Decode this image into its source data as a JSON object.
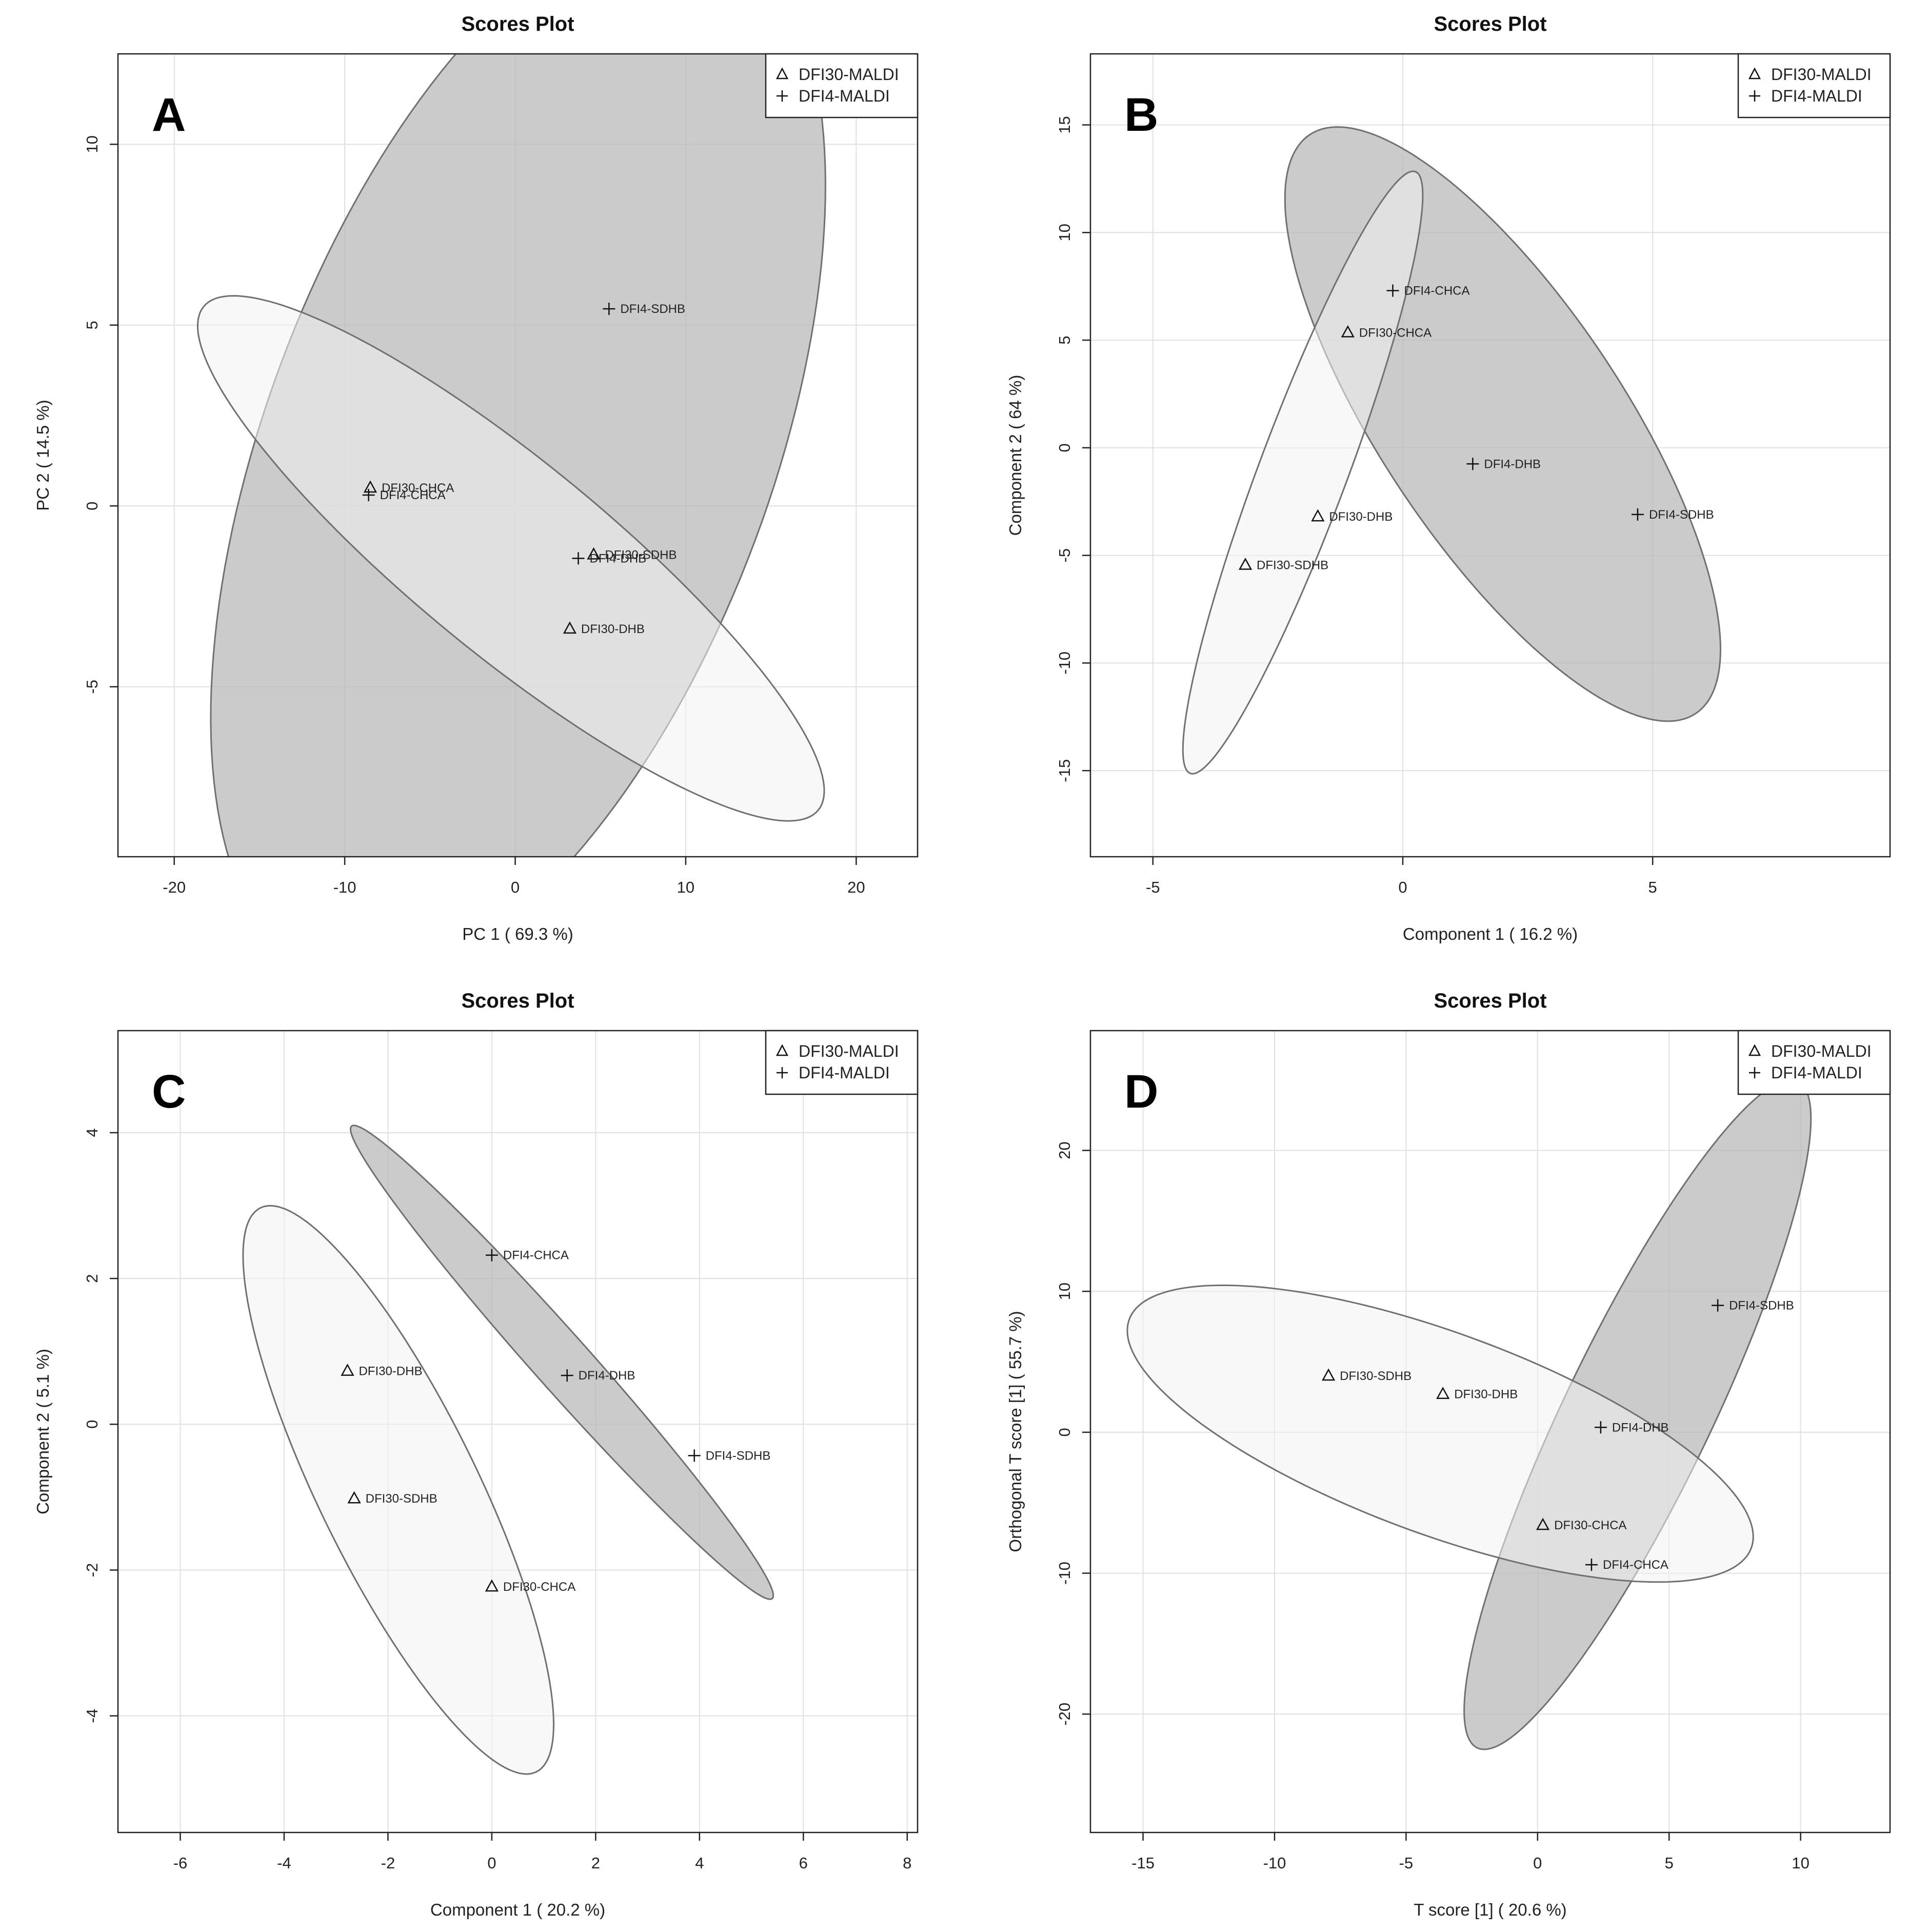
{
  "chart_data": [
    {
      "type": "scatter",
      "panel_label": "A",
      "title": "Scores Plot",
      "xlabel": "PC 1 ( 69.3 %)",
      "ylabel": "PC 2 ( 14.5 %)",
      "xlim": [
        -23.3,
        23.6
      ],
      "ylim": [
        -9.7,
        12.5
      ],
      "xticks": [
        -20,
        -10,
        0,
        10,
        20
      ],
      "yticks": [
        -5,
        0,
        5,
        10
      ],
      "grid": true,
      "legend": {
        "position": "top-right",
        "entries": [
          "DFI30-MALDI",
          "DFI4-MALDI"
        ]
      },
      "points": [
        {
          "label": "DFI30-CHCA",
          "series": "DFI30-MALDI",
          "x": -8.5,
          "y": 0.5
        },
        {
          "label": "DFI4-CHCA",
          "series": "DFI4-MALDI",
          "x": -8.6,
          "y": 0.3
        },
        {
          "label": "DFI30-SDHB",
          "series": "DFI30-MALDI",
          "x": 4.6,
          "y": -1.35
        },
        {
          "label": "DFI4-DHB",
          "series": "DFI4-MALDI",
          "x": 3.7,
          "y": -1.45
        },
        {
          "label": "DFI30-DHB",
          "series": "DFI30-MALDI",
          "x": 3.2,
          "y": -3.4
        },
        {
          "label": "DFI4-SDHB",
          "series": "DFI4-MALDI",
          "x": 5.5,
          "y": 5.45
        }
      ],
      "ellipses": [
        {
          "series": "DFI30-MALDI",
          "center_x": -0.25,
          "center_y": -1.45,
          "semi_axis_1": 19.5,
          "semi_axis_2": 3.18,
          "angle_deg": -19.83
        },
        {
          "series": "DFI4-MALDI",
          "center_x": 0.17,
          "center_y": 1.5,
          "semi_axis_1": 20.35,
          "semi_axis_2": 11.3,
          "angle_deg": 33.9
        }
      ]
    },
    {
      "type": "scatter",
      "panel_label": "B",
      "title": "Scores Plot",
      "xlabel": "Component 1 ( 16.2 %)",
      "ylabel": "Component 2 ( 64 %)",
      "xlim": [
        -6.25,
        9.75
      ],
      "ylim": [
        -19.0,
        18.3
      ],
      "xticks": [
        -5,
        0,
        5
      ],
      "yticks": [
        -15,
        -10,
        -5,
        0,
        5,
        10,
        15
      ],
      "grid": true,
      "legend": {
        "position": "top-right",
        "entries": [
          "DFI30-MALDI",
          "DFI4-MALDI"
        ]
      },
      "points": [
        {
          "label": "DFI4-CHCA",
          "series": "DFI4-MALDI",
          "x": -0.2,
          "y": 7.3
        },
        {
          "label": "DFI30-CHCA",
          "series": "DFI30-MALDI",
          "x": -1.1,
          "y": 5.35
        },
        {
          "label": "DFI4-DHB",
          "series": "DFI4-MALDI",
          "x": 1.4,
          "y": -0.75
        },
        {
          "label": "DFI30-DHB",
          "series": "DFI30-MALDI",
          "x": -1.7,
          "y": -3.2
        },
        {
          "label": "DFI4-SDHB",
          "series": "DFI4-MALDI",
          "x": 4.7,
          "y": -3.1
        },
        {
          "label": "DFI30-SDHB",
          "series": "DFI30-MALDI",
          "x": -3.15,
          "y": -5.45
        }
      ],
      "ellipses": [
        {
          "series": "DFI30-MALDI",
          "center_x": -2.0,
          "center_y": -1.15,
          "semi_axis_1": 14.17,
          "semi_axis_2": 0.93,
          "angle_deg": 81.0
        },
        {
          "series": "DFI4-MALDI",
          "center_x": 2.0,
          "center_y": 1.1,
          "semi_axis_1": 14.21,
          "semi_axis_2": 2.76,
          "angle_deg": -76.0
        }
      ]
    },
    {
      "type": "scatter",
      "panel_label": "C",
      "title": "Scores Plot",
      "xlabel": "Component 1 ( 20.2 %)",
      "ylabel": "Component 2 ( 5.1 %)",
      "xlim": [
        -7.2,
        8.2
      ],
      "ylim": [
        -5.6,
        5.4
      ],
      "xticks": [
        -6,
        -4,
        -2,
        0,
        2,
        4,
        6,
        8
      ],
      "yticks": [
        -4,
        -2,
        0,
        2,
        4
      ],
      "grid": true,
      "legend": {
        "position": "top-right",
        "entries": [
          "DFI30-MALDI",
          "DFI4-MALDI"
        ]
      },
      "points": [
        {
          "label": "DFI4-CHCA",
          "series": "DFI4-MALDI",
          "x": 0.0,
          "y": 2.32
        },
        {
          "label": "DFI30-DHB",
          "series": "DFI30-MALDI",
          "x": -2.78,
          "y": 0.73
        },
        {
          "label": "DFI4-DHB",
          "series": "DFI4-MALDI",
          "x": 1.45,
          "y": 0.67
        },
        {
          "label": "DFI4-SDHB",
          "series": "DFI4-MALDI",
          "x": 3.9,
          "y": -0.43
        },
        {
          "label": "DFI30-SDHB",
          "series": "DFI30-MALDI",
          "x": -2.65,
          "y": -1.02
        },
        {
          "label": "DFI30-CHCA",
          "series": "DFI30-MALDI",
          "x": 0.0,
          "y": -2.23
        }
      ],
      "ellipses": [
        {
          "series": "DFI30-MALDI",
          "center_x": -1.8,
          "center_y": -0.9,
          "semi_axis_1": 4.71,
          "semi_axis_2": 1.4,
          "angle_deg": -54.0
        },
        {
          "series": "DFI4-MALDI",
          "center_x": 1.35,
          "center_y": 0.85,
          "semi_axis_1": 5.19,
          "semi_axis_2": 0.45,
          "angle_deg": -38.5
        }
      ]
    },
    {
      "type": "scatter",
      "panel_label": "D",
      "title": "Scores Plot",
      "xlabel": "T score [1] ( 20.6 %)",
      "ylabel": "Orthogonal T score [1] ( 55.7 %)",
      "xlim": [
        -17.0,
        13.4
      ],
      "ylim": [
        -28.4,
        28.5
      ],
      "xticks": [
        -15,
        -10,
        -5,
        0,
        5,
        10
      ],
      "yticks": [
        -20,
        -10,
        0,
        10,
        20
      ],
      "grid": true,
      "legend": {
        "position": "top-right",
        "entries": [
          "DFI30-MALDI",
          "DFI4-MALDI"
        ]
      },
      "points": [
        {
          "label": "DFI4-SDHB",
          "series": "DFI4-MALDI",
          "x": 6.85,
          "y": 9.0
        },
        {
          "label": "DFI30-SDHB",
          "series": "DFI30-MALDI",
          "x": -7.95,
          "y": 4.0
        },
        {
          "label": "DFI30-DHB",
          "series": "DFI30-MALDI",
          "x": -3.6,
          "y": 2.7
        },
        {
          "label": "DFI4-DHB",
          "series": "DFI4-MALDI",
          "x": 2.4,
          "y": 0.35
        },
        {
          "label": "DFI30-CHCA",
          "series": "DFI30-MALDI",
          "x": 0.2,
          "y": -6.6
        },
        {
          "label": "DFI4-CHCA",
          "series": "DFI4-MALDI",
          "x": 2.05,
          "y": -9.4
        }
      ],
      "ellipses": [
        {
          "series": "DFI30-MALDI",
          "center_x": -3.7,
          "center_y": -0.1,
          "semi_axis_1": 14.65,
          "semi_axis_2": 6.15,
          "angle_deg": -40.0
        },
        {
          "series": "DFI4-MALDI",
          "center_x": 3.8,
          "center_y": 1.25,
          "semi_axis_1": 24.47,
          "semi_axis_2": 2.99,
          "angle_deg": 76.0
        }
      ]
    }
  ],
  "style": {
    "ellipse_fill_DFI30-MALDI": "#f2f2f2",
    "ellipse_fill_DFI4-MALDI": "#b9b9b9",
    "ellipse_stroke": "#707070",
    "grid_color": "#e0e0e0",
    "axis_color": "#222222"
  }
}
